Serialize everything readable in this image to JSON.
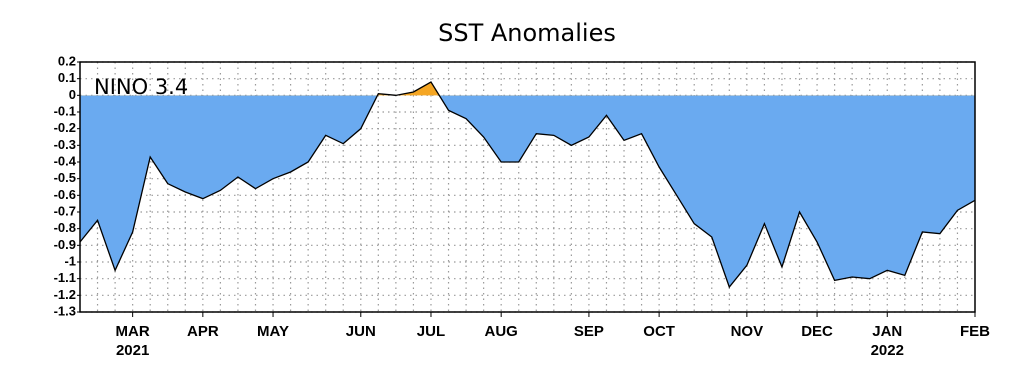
{
  "chart_data": {
    "type": "area",
    "title": "SST Anomalies",
    "annotation": "NINO 3.4",
    "categories": [
      "",
      "",
      "",
      "MAR 2021",
      null,
      null,
      null,
      "APR",
      null,
      null,
      null,
      "MAY",
      null,
      null,
      null,
      null,
      "JUN",
      null,
      null,
      null,
      "JUL",
      null,
      null,
      null,
      "AUG",
      null,
      null,
      null,
      null,
      "SEP",
      null,
      null,
      null,
      "OCT",
      null,
      null,
      null,
      null,
      "NOV",
      null,
      null,
      null,
      "DEC",
      null,
      null,
      null,
      "JAN 2022",
      null,
      null,
      null,
      null,
      "FEB"
    ],
    "values": [
      -0.88,
      -0.75,
      -1.05,
      -0.82,
      -0.37,
      -0.53,
      -0.58,
      -0.62,
      -0.57,
      -0.49,
      -0.56,
      -0.5,
      -0.46,
      -0.4,
      -0.24,
      -0.29,
      -0.2,
      0.01,
      0,
      0.02,
      0.08,
      -0.09,
      -0.14,
      -0.25,
      -0.4,
      -0.4,
      -0.23,
      -0.24,
      -0.3,
      -0.25,
      -0.12,
      -0.27,
      -0.23,
      -0.43,
      -0.6,
      -0.77,
      -0.85,
      -1.15,
      -1.02,
      -0.77,
      -1.03,
      -0.7,
      -0.88,
      -1.11,
      -1.09,
      -1.1,
      -1.05,
      -1.08,
      -0.82,
      -0.83,
      -0.69,
      -0.63
    ],
    "color_below": "#6aaaf0",
    "color_above": "#f5a623",
    "line_color": "#000000",
    "ylim": [
      -1.3,
      0.2
    ],
    "yticks": [
      0.2,
      0.1,
      0,
      -0.1,
      -0.2,
      -0.3,
      -0.4,
      -0.5,
      -0.6,
      -0.7,
      -0.8,
      -0.9,
      -1,
      -1.1,
      -1.2,
      -1.3
    ],
    "grid": true
  }
}
